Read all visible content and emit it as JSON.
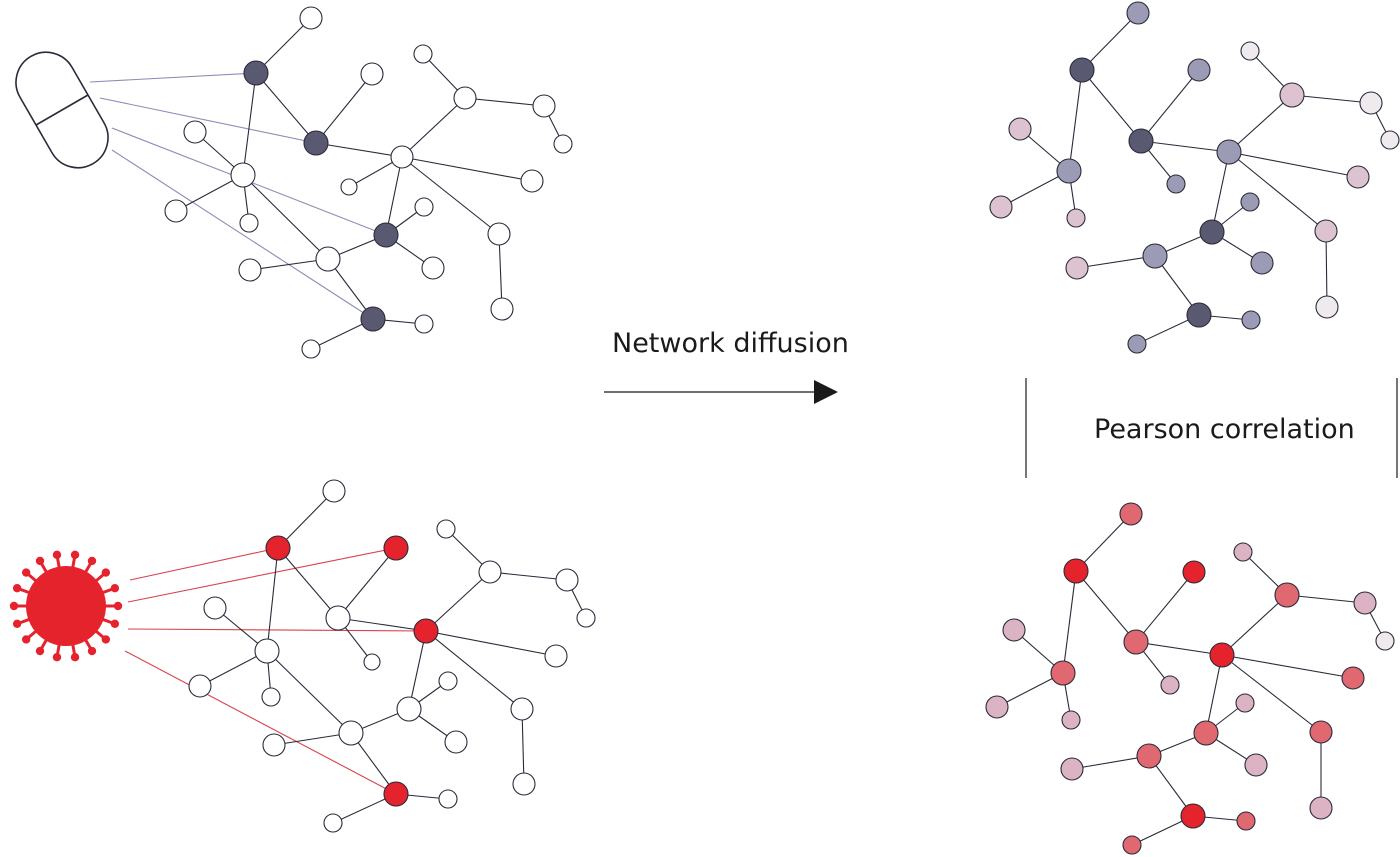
{
  "labels": {
    "diffusion": "Network diffusion",
    "correlation": "Pearson correlation"
  },
  "colors": {
    "drug_node": "#595a72",
    "drug_link": "#8a8cb5",
    "virus_node": "#e4232d",
    "virus_link": "#d9424c",
    "edge": "#2a2a3a",
    "node_stroke": "#2a2a3a",
    "empty_node": "#ffffff"
  },
  "icons": {
    "drug": "capsule-pill-icon",
    "virus": "coronavirus-icon",
    "arrow": "right-arrow-icon"
  },
  "panels": {
    "drug_network": {
      "description_free": true
    },
    "virus_network": {
      "description_free": true
    }
  }
}
